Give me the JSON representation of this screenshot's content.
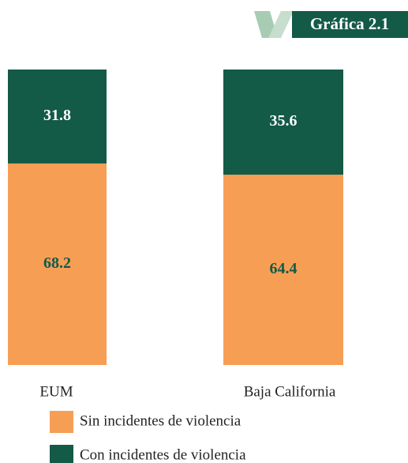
{
  "chart_data": {
    "type": "stacked_bar",
    "title": "Gráfica 2.1",
    "categories": [
      "EUM",
      "Baja California"
    ],
    "series": [
      {
        "name": "Sin incidentes de violencia",
        "color": "#f79e55",
        "label_color": "#135a47",
        "values": [
          68.2,
          64.4
        ]
      },
      {
        "name": "Con incidentes de violencia",
        "color": "#135a47",
        "label_color": "#ffffff",
        "values": [
          31.8,
          35.6
        ]
      }
    ],
    "ylim": [
      0,
      100
    ]
  }
}
